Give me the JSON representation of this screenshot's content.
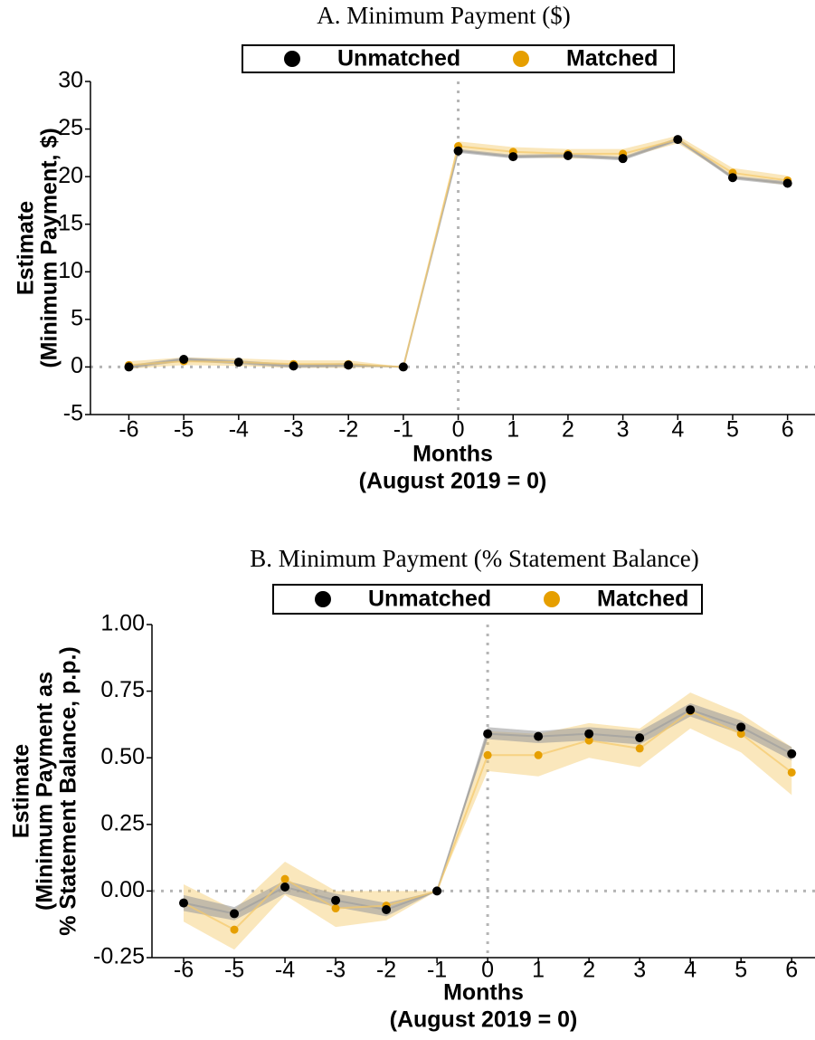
{
  "chart_data": [
    {
      "type": "line",
      "title": "A. Minimum Payment ($)",
      "xlabel": [
        "Months",
        "(August 2019 = 0)"
      ],
      "ylabel": [
        "Estimate",
        "(Minimum Payment, $)"
      ],
      "x": [
        -6,
        -5,
        -4,
        -3,
        -2,
        -1,
        0,
        1,
        2,
        3,
        4,
        5,
        6
      ],
      "series": [
        {
          "name": "Unmatched",
          "color": "#000000",
          "band_color": "#9e9e9e",
          "values": [
            0.0,
            0.8,
            0.5,
            0.1,
            0.2,
            0,
            22.7,
            22.1,
            22.2,
            21.9,
            23.9,
            19.9,
            19.3
          ],
          "lower": [
            -0.2,
            0.6,
            0.3,
            -0.1,
            0.0,
            0,
            22.5,
            21.9,
            22.0,
            21.7,
            23.7,
            19.7,
            19.1
          ],
          "upper": [
            0.2,
            1.0,
            0.7,
            0.3,
            0.4,
            0,
            22.9,
            22.3,
            22.4,
            22.1,
            24.1,
            20.1,
            19.5
          ]
        },
        {
          "name": "Matched",
          "color": "#E69F00",
          "band_color": "#F5C96A",
          "values": [
            0.2,
            0.6,
            0.5,
            0.3,
            0.3,
            0,
            23.2,
            22.6,
            22.4,
            22.4,
            23.9,
            20.4,
            19.6
          ],
          "lower": [
            -0.2,
            0.2,
            0.1,
            -0.1,
            -0.1,
            0,
            22.7,
            22.1,
            21.9,
            21.9,
            23.5,
            19.9,
            19.1
          ],
          "upper": [
            0.6,
            1.0,
            0.9,
            0.7,
            0.7,
            0,
            23.7,
            23.1,
            22.9,
            22.9,
            24.3,
            20.9,
            20.1
          ]
        }
      ],
      "xlim": [
        -6.7,
        6.5
      ],
      "xticks": [
        -6,
        -5,
        -4,
        -3,
        -2,
        -1,
        0,
        1,
        2,
        3,
        4,
        5,
        6
      ],
      "ylim": [
        -5,
        30
      ],
      "yticks": [
        30,
        25,
        20,
        15,
        10,
        5,
        0,
        -5
      ],
      "vline": 0,
      "hline": 0,
      "legend": "top"
    },
    {
      "type": "line",
      "title": "B. Minimum Payment (% Statement Balance)",
      "xlabel": [
        "Months",
        "(August 2019 = 0)"
      ],
      "ylabel": [
        "Estimate",
        "(Minimum Payment as",
        "% Statement Balance, p.p.)"
      ],
      "x": [
        -6,
        -5,
        -4,
        -3,
        -2,
        -1,
        0,
        1,
        2,
        3,
        4,
        5,
        6
      ],
      "series": [
        {
          "name": "Unmatched",
          "color": "#000000",
          "band_color": "#9e9e9e",
          "values": [
            -0.045,
            -0.085,
            0.015,
            -0.035,
            -0.07,
            0,
            0.59,
            0.58,
            0.59,
            0.575,
            0.68,
            0.615,
            0.515
          ],
          "lower": [
            -0.075,
            -0.11,
            -0.01,
            -0.06,
            -0.095,
            0,
            0.57,
            0.555,
            0.565,
            0.55,
            0.655,
            0.59,
            0.49
          ],
          "upper": [
            -0.015,
            -0.06,
            0.04,
            -0.01,
            -0.045,
            0,
            0.615,
            0.6,
            0.615,
            0.6,
            0.705,
            0.64,
            0.54
          ]
        },
        {
          "name": "Matched",
          "color": "#E69F00",
          "band_color": "#F5C96A",
          "values": [
            -0.045,
            -0.145,
            0.045,
            -0.065,
            -0.055,
            0,
            0.51,
            0.51,
            0.565,
            0.535,
            0.675,
            0.59,
            0.445
          ],
          "lower": [
            -0.115,
            -0.22,
            -0.015,
            -0.135,
            -0.11,
            0,
            0.45,
            0.43,
            0.5,
            0.465,
            0.61,
            0.52,
            0.36
          ],
          "upper": [
            0.025,
            -0.07,
            0.11,
            0.0,
            0.0,
            0,
            0.6,
            0.59,
            0.63,
            0.61,
            0.745,
            0.665,
            0.54
          ]
        }
      ],
      "xlim": [
        -6.625,
        6.46
      ],
      "xticks": [
        -6,
        -5,
        -4,
        -3,
        -2,
        -1,
        0,
        1,
        2,
        3,
        4,
        5,
        6
      ],
      "ylim": [
        -0.25,
        1
      ],
      "yticks": [
        {
          "value": 1,
          "label": "1.00"
        },
        {
          "value": 0.75,
          "label": "0.75"
        },
        {
          "value": 0.5,
          "label": "0.50"
        },
        {
          "value": 0.25,
          "label": "0.25"
        },
        {
          "value": 0,
          "label": "0.00"
        },
        {
          "value": -0.25,
          "label": "-0.25"
        }
      ],
      "vline": 0,
      "hline": 0,
      "legend": "top"
    }
  ]
}
